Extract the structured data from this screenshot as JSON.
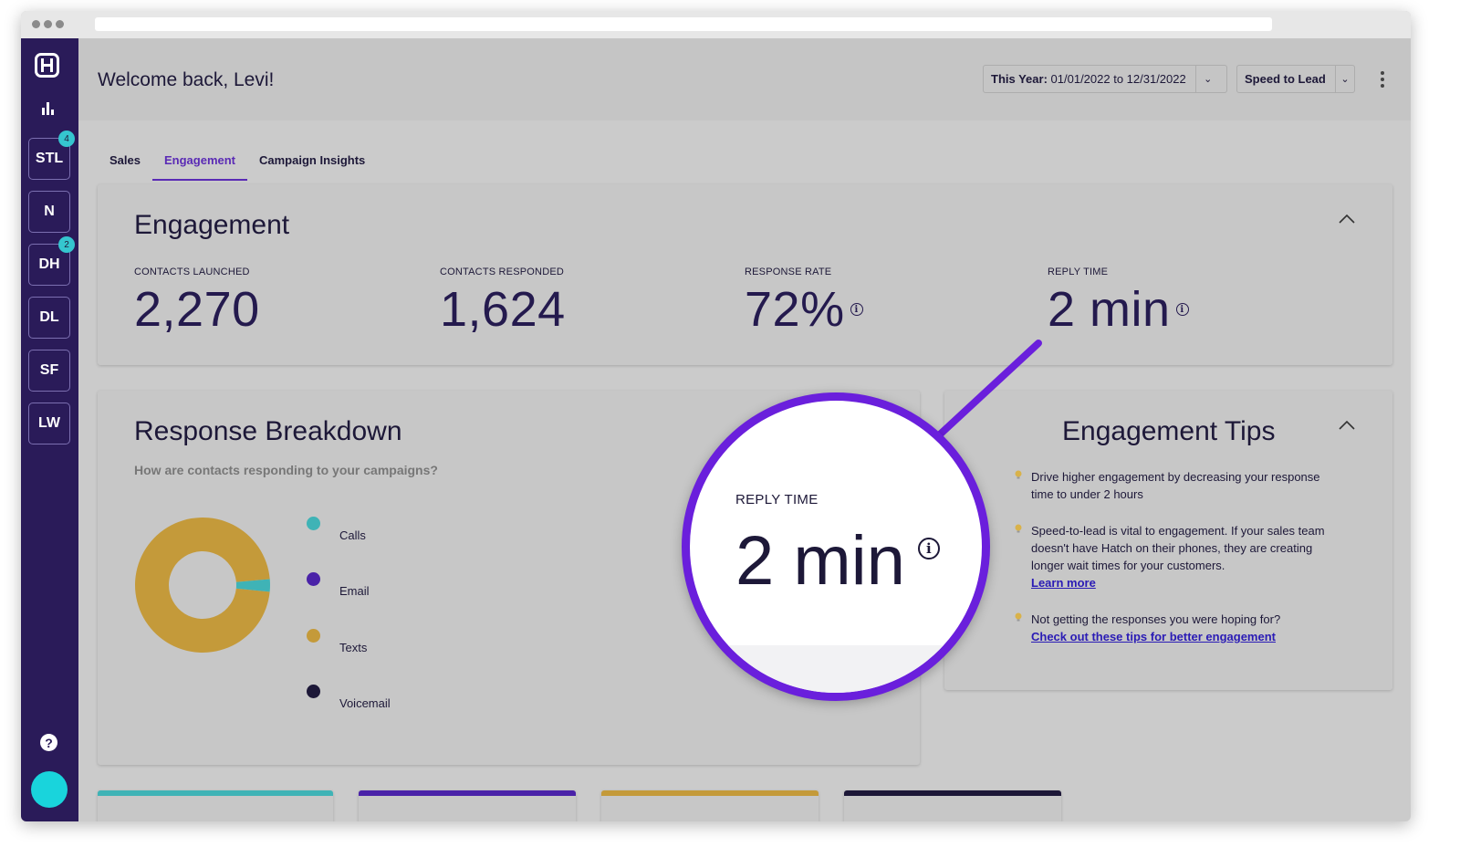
{
  "header": {
    "welcome": "Welcome back, Levi!",
    "date_filter_prefix": "This Year:",
    "date_filter_range": "01/01/2022 to 12/31/2022",
    "metric_filter": "Speed to Lead"
  },
  "sidebar": {
    "items": [
      {
        "label": "STL",
        "badge": "4"
      },
      {
        "label": "N",
        "badge": ""
      },
      {
        "label": "DH",
        "badge": "2"
      },
      {
        "label": "DL",
        "badge": ""
      },
      {
        "label": "SF",
        "badge": ""
      },
      {
        "label": "LW",
        "badge": ""
      }
    ]
  },
  "tabs": [
    "Sales",
    "Engagement",
    "Campaign Insights"
  ],
  "engagement": {
    "title": "Engagement",
    "stats": [
      {
        "label": "CONTACTS LAUNCHED",
        "value": "2,270"
      },
      {
        "label": "CONTACTS RESPONDED",
        "value": "1,624"
      },
      {
        "label": "RESPONSE RATE",
        "value": "72%"
      },
      {
        "label": "REPLY TIME",
        "value": "2 min"
      }
    ]
  },
  "breakdown": {
    "title": "Response Breakdown",
    "subtitle": "How are contacts responding to your campaigns?",
    "legend": [
      {
        "label": "Calls",
        "color": "#3fb3b6"
      },
      {
        "label": "Email",
        "color": "#4a22a8"
      },
      {
        "label": "Texts",
        "color": "#c49a3a"
      },
      {
        "label": "Voicemail",
        "color": "#1d1838"
      }
    ]
  },
  "chart_data": {
    "type": "pie",
    "categories": [
      "Calls",
      "Email",
      "Texts",
      "Voicemail"
    ],
    "values": [
      3,
      0,
      97,
      0
    ],
    "colors": [
      "#3fb3b6",
      "#4a22a8",
      "#c49a3a",
      "#1d1838"
    ]
  },
  "tips": {
    "title": "Engagement Tips",
    "items": [
      {
        "text": "Drive higher engagement by decreasing your response time to under 2 hours",
        "link": ""
      },
      {
        "text": "Speed-to-lead is vital to engagement. If your sales team doesn't have Hatch on their phones, they are creating longer wait times for your customers.",
        "link": "Learn more"
      },
      {
        "text": "Not getting the responses you were hoping for?",
        "link": "Check out these tips for better engagement"
      }
    ]
  },
  "magnifier": {
    "label": "REPLY TIME",
    "value": "2 min"
  },
  "bottom_cards": [
    {
      "color": "#3fb3b6"
    },
    {
      "color": "#4a22a8"
    },
    {
      "color": "#c49a3a"
    },
    {
      "color": "#1d1838"
    }
  ],
  "accent_color": "#6a1fdc"
}
